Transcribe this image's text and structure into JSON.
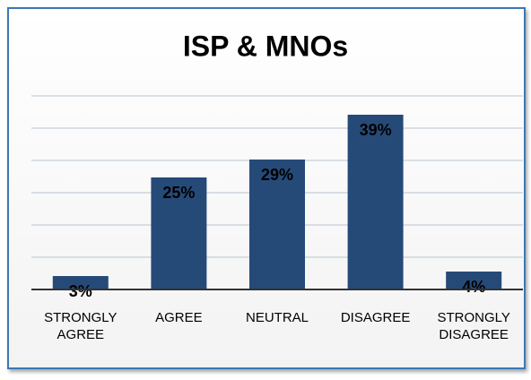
{
  "chart_data": {
    "type": "bar",
    "title": "ISP & MNOs",
    "categories": [
      "STRONGLY AGREE",
      "AGREE",
      "NEUTRAL",
      "DISAGREE",
      "STRONGLY DISAGREE"
    ],
    "values": [
      3,
      25,
      29,
      39,
      4
    ],
    "value_labels": [
      "3%",
      "25%",
      "29%",
      "39%",
      "4%"
    ],
    "color": "#264a78",
    "ylim": [
      0,
      43.2
    ],
    "yticks": [
      0,
      7.2,
      14.4,
      21.6,
      28.8,
      36,
      43.2
    ],
    "grid": true
  }
}
